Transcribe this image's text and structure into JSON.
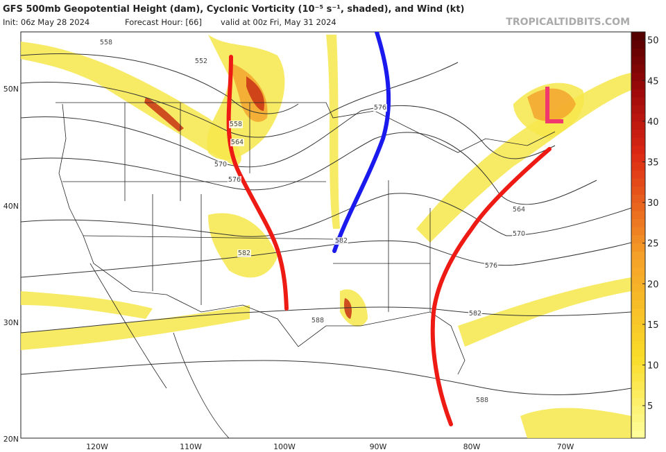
{
  "header": {
    "title": "GFS 500mb Geopotential Height (dam), Cyclonic Vorticity (10⁻⁵ s⁻¹, shaded), and Wind (kt)",
    "init": "Init: 06z May 28 2024",
    "forecast_hour": "Forecast Hour: [66]",
    "valid": "valid at 00z Fri, May 31 2024",
    "credit": "TROPICALTIDBITS.COM"
  },
  "latitude_labels": [
    "50N",
    "40N",
    "30N",
    "20N"
  ],
  "longitude_labels": [
    "120W",
    "110W",
    "100W",
    "90W",
    "80W",
    "70W"
  ],
  "contour_labels": [
    "558",
    "552",
    "558",
    "564",
    "570",
    "576",
    "576",
    "582",
    "582",
    "588",
    "564",
    "570",
    "576",
    "582",
    "588"
  ],
  "colorbar": {
    "lim": [
      1,
      51
    ],
    "ticks": [
      5,
      10,
      15,
      20,
      25,
      30,
      35,
      40,
      45,
      50
    ]
  }
}
